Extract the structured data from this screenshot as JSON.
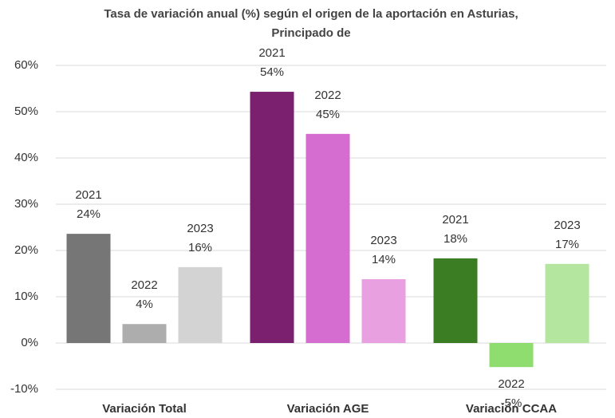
{
  "chart_data": {
    "type": "bar",
    "title": "Tasa de variación anual (%) según el origen de la aportación en Asturias, Principado de",
    "categories": [
      "Variación Total",
      "Variación AGE",
      "Variación CCAA"
    ],
    "series": [
      {
        "name": "2021",
        "colors": [
          "#767676",
          "#7b1f6f",
          "#3a7d23"
        ],
        "values": [
          23.6,
          54.3,
          18.3
        ],
        "value_labels": [
          "24%",
          "54%",
          "18%"
        ]
      },
      {
        "name": "2022",
        "colors": [
          "#adadad",
          "#d56ccf",
          "#8fdc6f"
        ],
        "values": [
          4.1,
          45.2,
          -5.2
        ],
        "value_labels": [
          "4%",
          "45%",
          "-5%"
        ]
      },
      {
        "name": "2023",
        "colors": [
          "#d3d3d3",
          "#e8a0e0",
          "#b5e6a0"
        ],
        "values": [
          16.4,
          13.8,
          17.1
        ],
        "value_labels": [
          "16%",
          "14%",
          "17%"
        ]
      }
    ],
    "ylim": [
      -10,
      60
    ],
    "yticks": [
      {
        "value": -10,
        "label": "-10%"
      },
      {
        "value": 0,
        "label": "0%"
      },
      {
        "value": 10,
        "label": "10%"
      },
      {
        "value": 20,
        "label": "20%"
      },
      {
        "value": 30,
        "label": "30%"
      },
      {
        "value": 40,
        "label": "40%"
      },
      {
        "value": 50,
        "label": "50%"
      },
      {
        "value": 60,
        "label": "60%"
      }
    ],
    "grid": true
  }
}
